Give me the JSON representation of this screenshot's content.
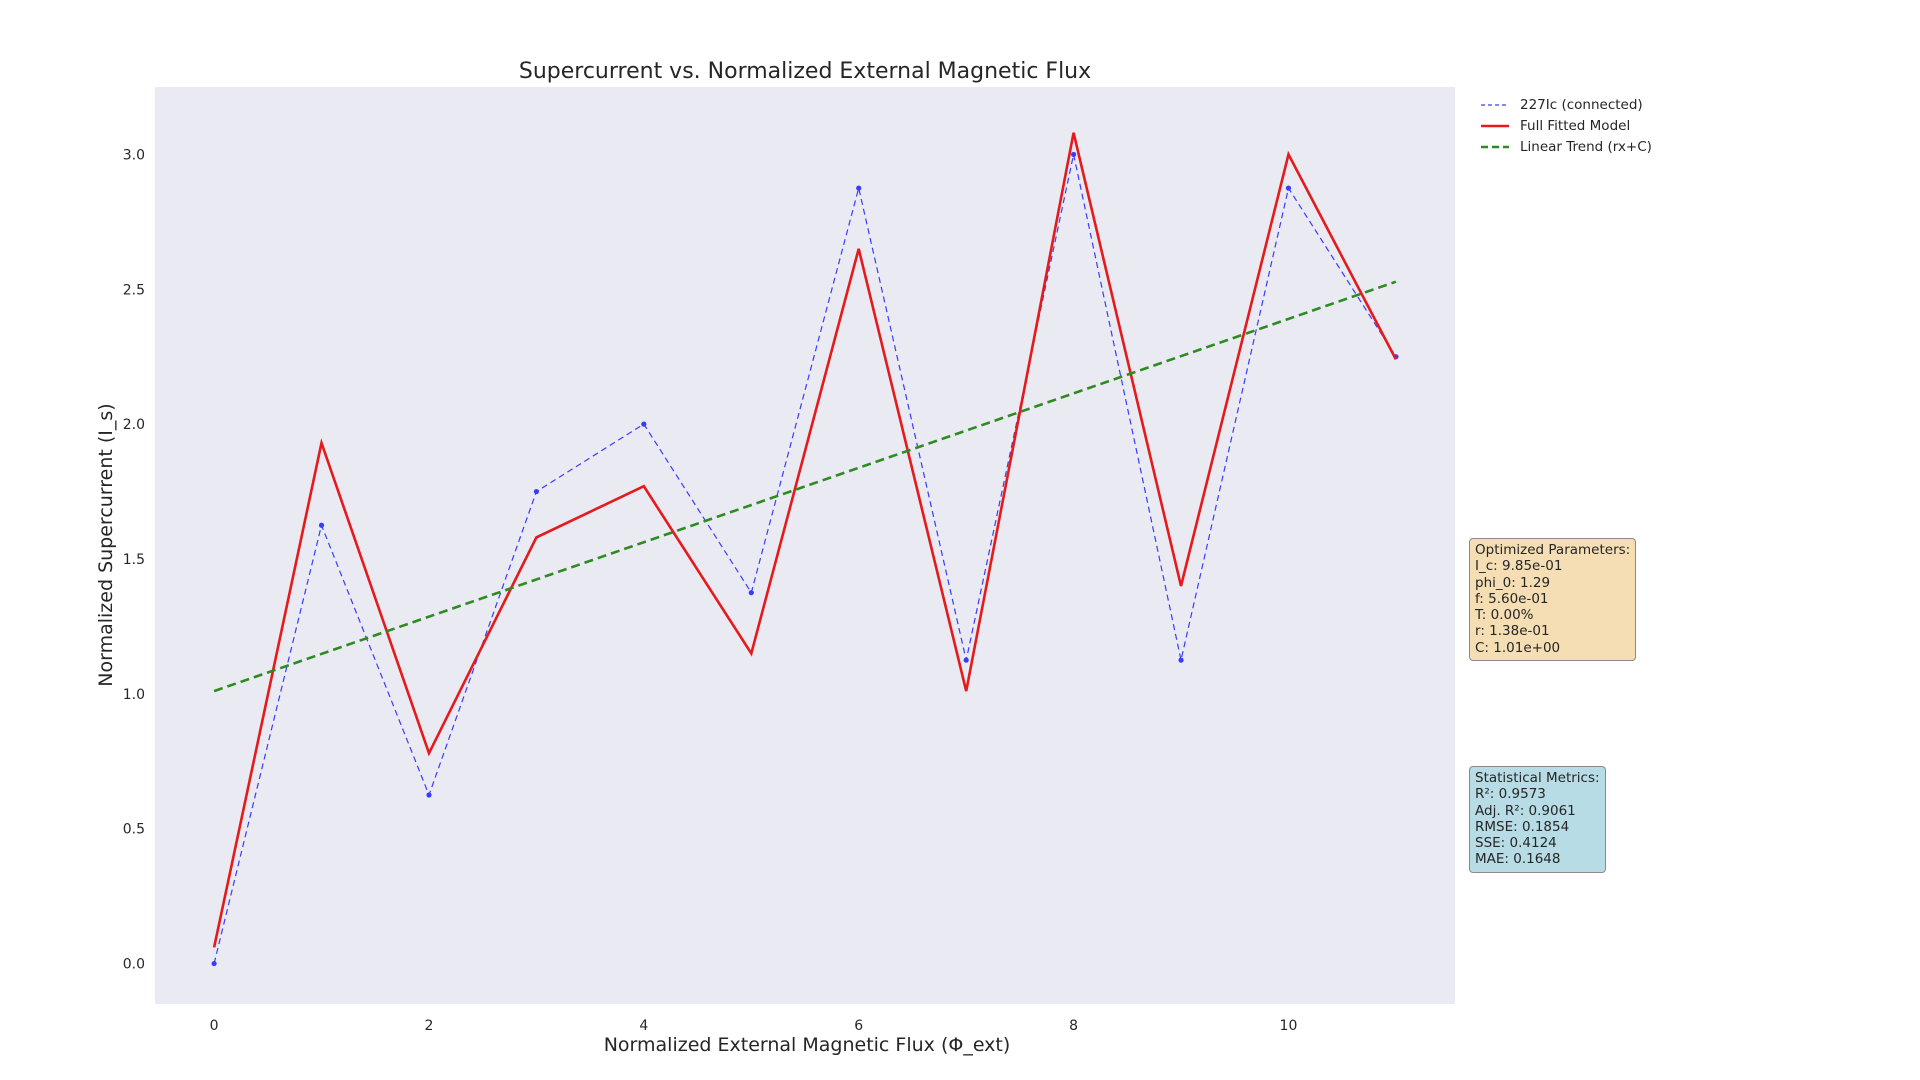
{
  "chart_data": {
    "type": "line",
    "title": "Supercurrent vs. Normalized External Magnetic Flux",
    "xlabel": "Normalized External Magnetic Flux (Φ_ext)",
    "ylabel": "Normalized Supercurrent (I_s)",
    "xlim": [
      -0.55,
      11.55
    ],
    "ylim": [
      -0.15,
      3.25
    ],
    "xticks": [
      0,
      2,
      4,
      6,
      8,
      10
    ],
    "yticks": [
      0.0,
      0.5,
      1.0,
      1.5,
      2.0,
      2.5,
      3.0
    ],
    "xtick_labels": [
      "0",
      "2",
      "4",
      "6",
      "8",
      "10"
    ],
    "ytick_labels": [
      "0.0",
      "0.5",
      "1.0",
      "1.5",
      "2.0",
      "2.5",
      "3.0"
    ],
    "grid": false,
    "background": "#eaeaf2",
    "legend_position": "outside-top-right",
    "series": [
      {
        "name": "227Ic (connected)",
        "style": "dashed",
        "markers": true,
        "color": "#3b3bff",
        "x": [
          0,
          1,
          2,
          3,
          4,
          5,
          6,
          7,
          8,
          9,
          10,
          11
        ],
        "values": [
          0.0,
          1.625,
          0.625,
          1.75,
          2.0,
          1.375,
          2.875,
          1.125,
          3.0,
          1.125,
          2.875,
          2.25
        ]
      },
      {
        "name": "Full Fitted Model",
        "style": "solid",
        "markers": false,
        "color": "#e41a1c",
        "x": [
          0,
          1,
          2,
          3,
          4,
          5,
          6,
          7,
          8,
          9,
          10,
          11
        ],
        "values": [
          0.06,
          1.93,
          0.78,
          1.58,
          1.77,
          1.15,
          2.65,
          1.01,
          3.08,
          1.4,
          3.0,
          2.24
        ]
      },
      {
        "name": "Linear Trend (rx+C)",
        "style": "dashed",
        "markers": false,
        "color": "#2e8b22",
        "x": [
          0,
          11
        ],
        "values": [
          1.01,
          2.528
        ]
      }
    ]
  },
  "annotations": {
    "parameters": [
      "Optimized Parameters:",
      "I_c: 9.85e-01",
      "phi_0: 1.29",
      "f: 5.60e-01",
      "T: 0.00%",
      "r: 1.38e-01",
      "C: 1.01e+00"
    ],
    "metrics": [
      "Statistical Metrics:",
      "R²: 0.9573",
      "Adj. R²: 0.9061",
      "RMSE: 0.1854",
      "SSE: 0.4124",
      "MAE: 0.1648"
    ],
    "parameters_color": "#f5deb3",
    "metrics_color": "#b7dce6"
  }
}
